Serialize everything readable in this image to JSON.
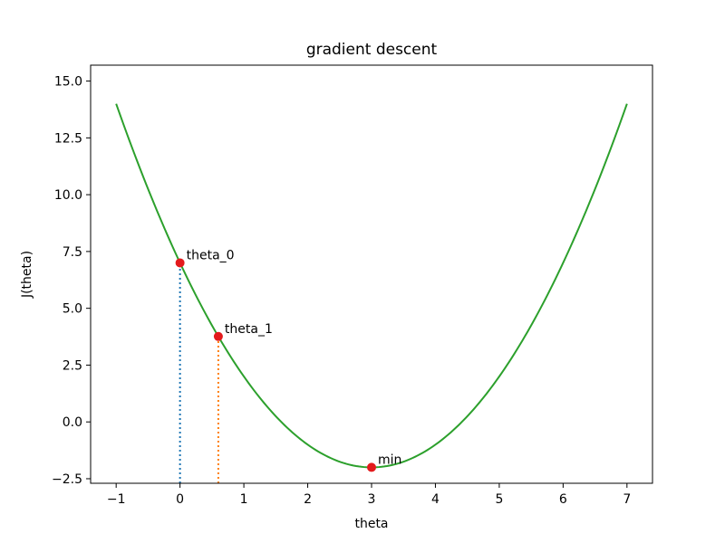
{
  "chart_data": {
    "type": "line",
    "title": "gradient descent",
    "xlabel": "theta",
    "ylabel": "J(theta)",
    "xlim": [
      -1.4,
      7.4
    ],
    "ylim": [
      -2.7,
      15.7
    ],
    "xticks": [
      -1,
      0,
      1,
      2,
      3,
      4,
      5,
      6,
      7
    ],
    "xtick_labels": [
      "−1",
      "0",
      "1",
      "2",
      "3",
      "4",
      "5",
      "6",
      "7"
    ],
    "yticks": [
      -2.5,
      0,
      2.5,
      5,
      7.5,
      10,
      12.5,
      15
    ],
    "ytick_labels": [
      "−2.5",
      "0.0",
      "2.5",
      "5.0",
      "7.5",
      "10.0",
      "12.5",
      "15.0"
    ],
    "grid": false,
    "series": [
      {
        "style": "line",
        "color": "#2ca02c",
        "x": [
          -1.0,
          -0.5,
          0.0,
          0.5,
          1.0,
          1.5,
          2.0,
          2.5,
          3.0,
          3.5,
          4.0,
          4.5,
          5.0,
          5.5,
          6.0,
          6.5,
          7.0
        ],
        "y": [
          14.0,
          10.25,
          7.0,
          4.25,
          2.0,
          0.25,
          -1.0,
          -1.75,
          -2.0,
          -1.75,
          -1.0,
          0.25,
          2.0,
          4.25,
          7.0,
          10.25,
          14.0
        ]
      }
    ],
    "drop_lines": [
      {
        "x": 0.0,
        "y_from": -2.7,
        "y_to": 7.0,
        "color": "#1f77b4",
        "style": "dotted"
      },
      {
        "x": 0.6,
        "y_from": -2.7,
        "y_to": 3.76,
        "color": "#ff7f0e",
        "style": "dotted"
      }
    ],
    "points": [
      {
        "label": "theta_0",
        "x": 0.0,
        "y": 7.0,
        "color": "#e31a1c"
      },
      {
        "label": "theta_1",
        "x": 0.6,
        "y": 3.76,
        "color": "#e31a1c"
      },
      {
        "label": "min",
        "x": 3.0,
        "y": -2.0,
        "color": "#e31a1c"
      }
    ]
  }
}
